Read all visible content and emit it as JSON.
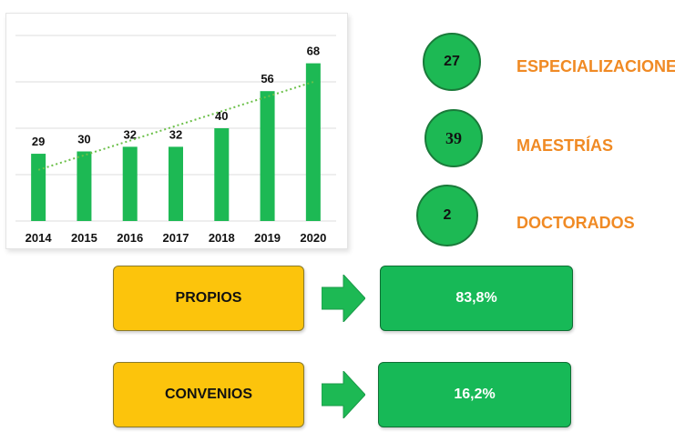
{
  "chart_data": {
    "type": "bar",
    "categories": [
      "2014",
      "2015",
      "2016",
      "2017",
      "2018",
      "2019",
      "2020"
    ],
    "values": [
      29,
      30,
      32,
      32,
      40,
      56,
      68
    ],
    "title": "",
    "xlabel": "",
    "ylabel": "",
    "ylim": [
      0,
      80
    ],
    "grid": true,
    "trendline": "linear, dotted",
    "colors": {
      "bar": "#1db954",
      "trend": "#6cc04a"
    }
  },
  "programs": [
    {
      "count": "27",
      "label": "ESPECIALIZACIONE"
    },
    {
      "count": "39",
      "label": "MAESTRÍAS"
    },
    {
      "count": "2",
      "label": "DOCTORADOS"
    }
  ],
  "breakdown": [
    {
      "label": "PROPIOS",
      "value": "83,8%"
    },
    {
      "label": "CONVENIOS",
      "value": "16,2%"
    }
  ],
  "colors": {
    "green": "#1db954",
    "orange": "#f08a24",
    "yellow": "#fcc40c"
  }
}
